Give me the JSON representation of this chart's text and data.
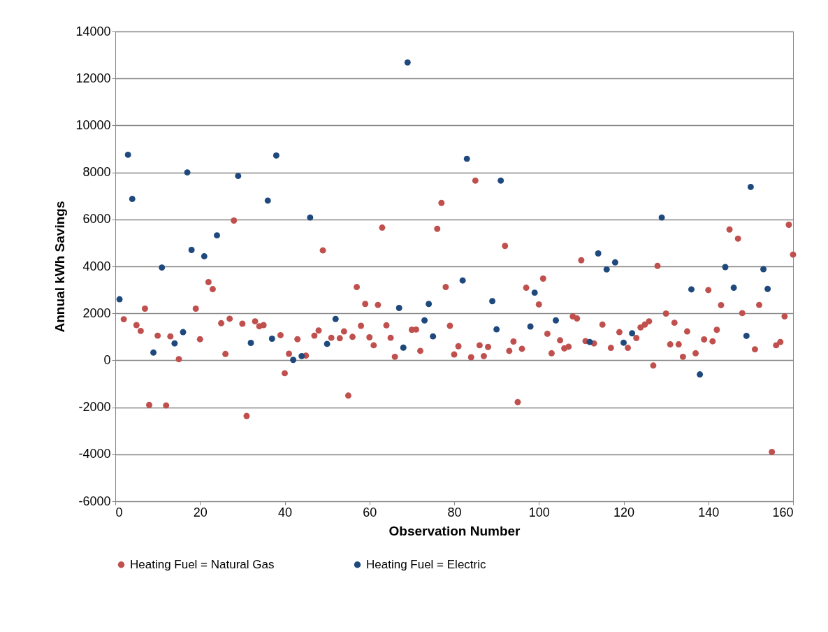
{
  "chart_data": {
    "type": "scatter",
    "xlabel": "Observation Number",
    "ylabel": "Annual kWh Savings",
    "xlim": [
      0,
      160
    ],
    "xticks": [
      0,
      20,
      40,
      60,
      80,
      100,
      120,
      140,
      160
    ],
    "ylim": [
      -6000,
      14000
    ],
    "yticks": [
      -6000,
      -4000,
      -2000,
      0,
      2000,
      4000,
      6000,
      8000,
      10000,
      12000,
      14000
    ],
    "grid": "y",
    "legend": "bottom",
    "marker": "circle",
    "series": [
      {
        "name": "Heating Fuel = Natural Gas",
        "color": "#c0504d",
        "x": [
          2,
          5,
          6,
          7,
          8,
          10,
          12,
          13,
          15,
          19,
          20,
          22,
          23,
          25,
          26,
          27,
          28,
          30,
          31,
          33,
          34,
          35,
          39,
          40,
          41,
          43,
          45,
          47,
          48,
          49,
          51,
          53,
          54,
          55,
          56,
          57,
          58,
          59,
          60,
          61,
          62,
          63,
          64,
          65,
          66,
          70,
          71,
          72,
          76,
          77,
          78,
          79,
          80,
          81,
          84,
          85,
          86,
          87,
          88,
          92,
          93,
          94,
          95,
          96,
          97,
          100,
          101,
          102,
          103,
          105,
          106,
          107,
          108,
          109,
          110,
          111,
          113,
          115,
          117,
          119,
          121,
          123,
          124,
          125,
          126,
          127,
          128,
          130,
          131,
          132,
          133,
          134,
          135,
          137,
          139,
          140,
          141,
          142,
          143,
          145,
          147,
          148,
          151,
          152,
          155,
          156,
          157,
          158,
          159,
          160
        ],
        "values": [
          1750,
          1500,
          1250,
          2200,
          -1900,
          1050,
          -1920,
          1020,
          50,
          2200,
          900,
          3330,
          3030,
          1580,
          270,
          1770,
          5950,
          1560,
          -2370,
          1660,
          1450,
          1500,
          1070,
          -550,
          280,
          900,
          200,
          1050,
          1270,
          4680,
          960,
          940,
          1230,
          -1500,
          1000,
          3120,
          1470,
          2400,
          980,
          640,
          2360,
          5650,
          1490,
          960,
          150,
          1300,
          1310,
          400,
          5600,
          6700,
          3120,
          1470,
          250,
          600,
          130,
          7650,
          640,
          180,
          570,
          4870,
          400,
          800,
          -1780,
          490,
          3090,
          2380,
          3480,
          1130,
          300,
          850,
          510,
          580,
          1870,
          1780,
          4260,
          820,
          720,
          1520,
          530,
          1200,
          530,
          950,
          1400,
          1520,
          1660,
          -220,
          4020,
          1990,
          680,
          1600,
          680,
          150,
          1230,
          300,
          890,
          2990,
          810,
          1300,
          2350,
          5570,
          5180,
          2010,
          470,
          2360,
          -3900,
          640,
          780,
          1870,
          5770,
          4500
        ]
      },
      {
        "name": "Heating Fuel = Electric",
        "color": "#1f497d",
        "x": [
          1,
          3,
          4,
          9,
          11,
          14,
          16,
          17,
          18,
          21,
          24,
          29,
          32,
          36,
          37,
          38,
          42,
          44,
          46,
          50,
          52,
          67,
          68,
          69,
          73,
          74,
          75,
          82,
          83,
          89,
          90,
          91,
          98,
          99,
          104,
          112,
          114,
          116,
          118,
          120,
          122,
          129,
          136,
          138,
          144,
          146,
          149,
          150,
          153,
          154
        ],
        "values": [
          2600,
          8750,
          6870,
          330,
          3950,
          720,
          1200,
          8000,
          4700,
          4430,
          5320,
          7850,
          740,
          6800,
          920,
          8720,
          20,
          180,
          6080,
          700,
          1760,
          2230,
          540,
          12680,
          1700,
          2400,
          1020,
          3400,
          8580,
          2520,
          1320,
          7650,
          1440,
          2880,
          1700,
          780,
          4550,
          3870,
          4170,
          750,
          1150,
          6080,
          3020,
          -600,
          3970,
          3090,
          1040,
          7380,
          3880,
          3040
        ]
      }
    ]
  }
}
